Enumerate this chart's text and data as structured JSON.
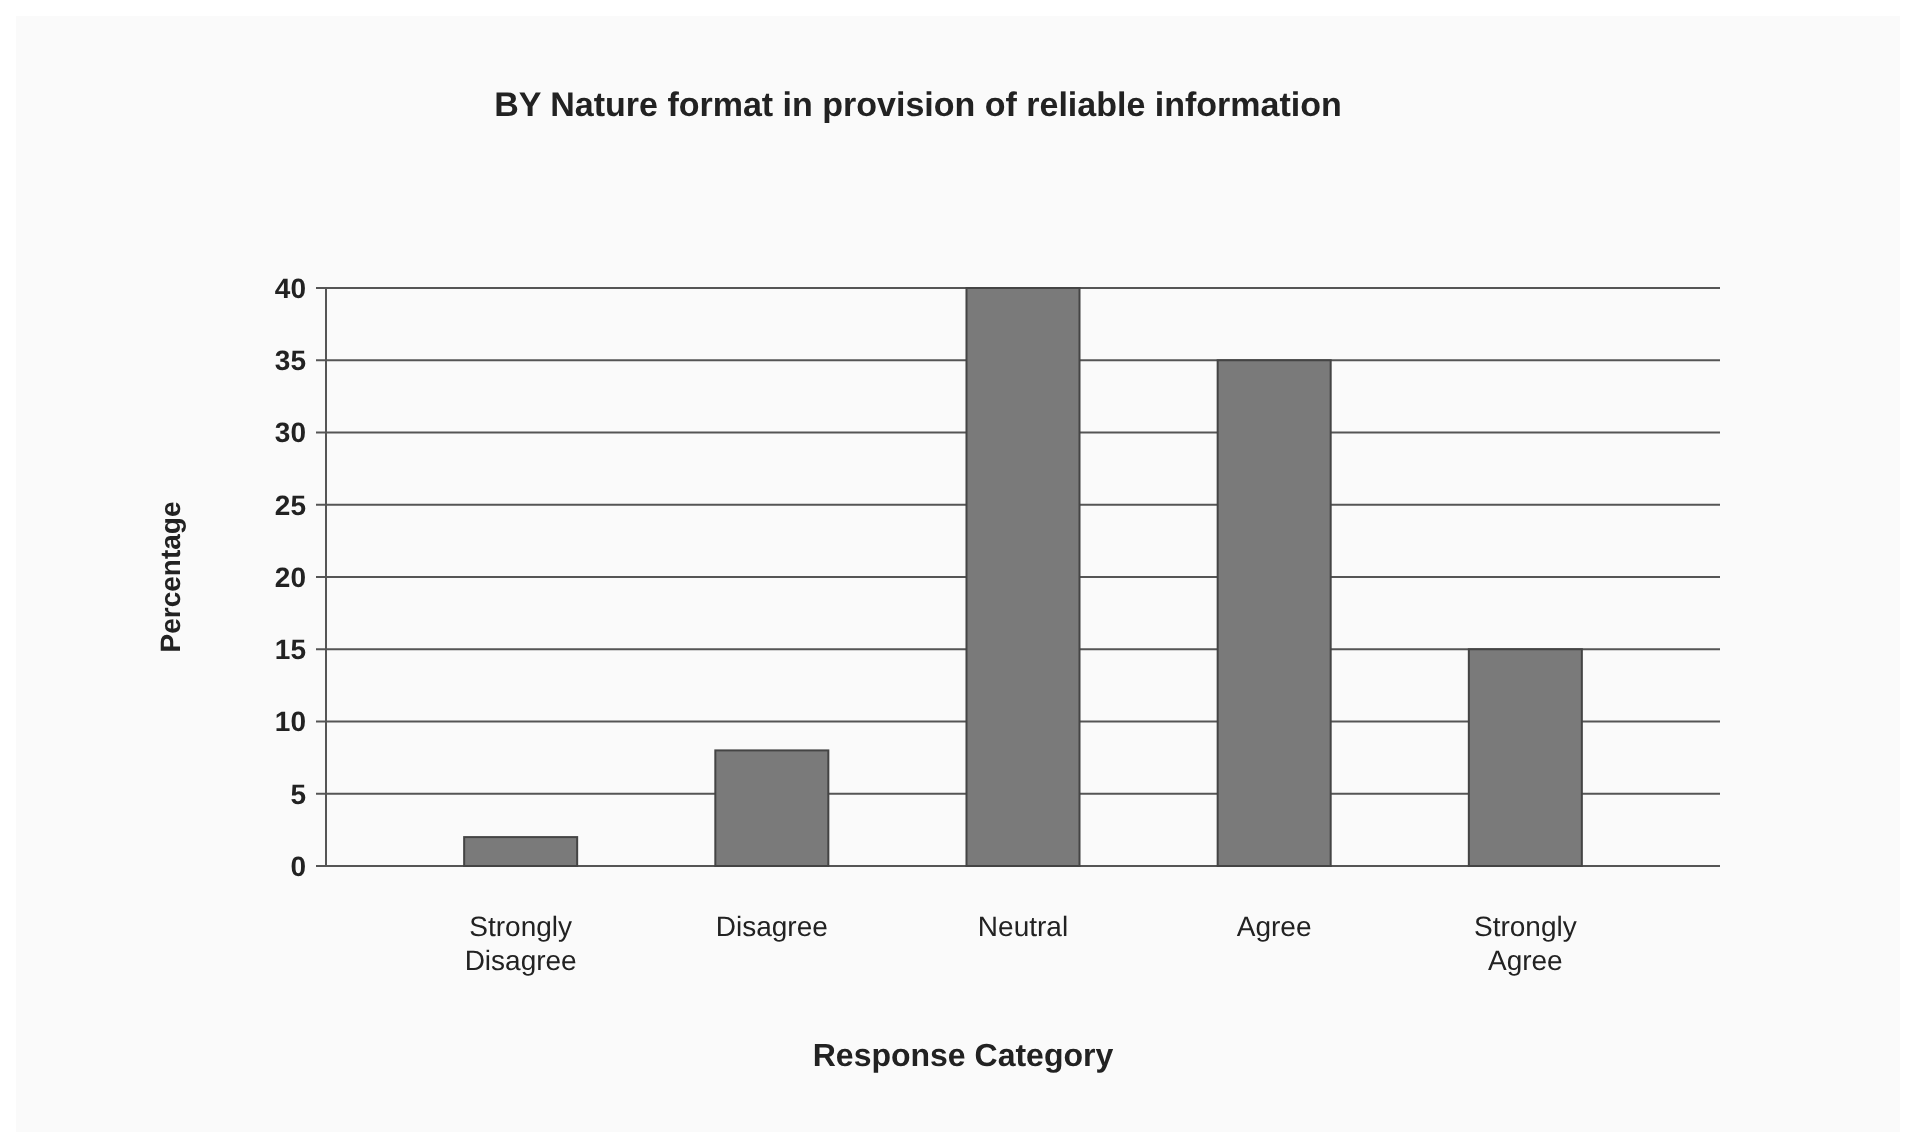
{
  "chart_data": {
    "type": "bar",
    "title": "BY Nature format in provision of reliable information",
    "xlabel": "Response Category",
    "ylabel": "Percentage",
    "categories": [
      "Strongly Disagree",
      "Disagree",
      "Neutral",
      "Agree",
      "Strongly Agree"
    ],
    "values": [
      2,
      8,
      40,
      35,
      15
    ],
    "color": "#7a7a7a",
    "ylim": [
      0,
      40
    ],
    "yticks": [
      0,
      5,
      10,
      15,
      20,
      25,
      30,
      35,
      40
    ],
    "grid": "y"
  }
}
